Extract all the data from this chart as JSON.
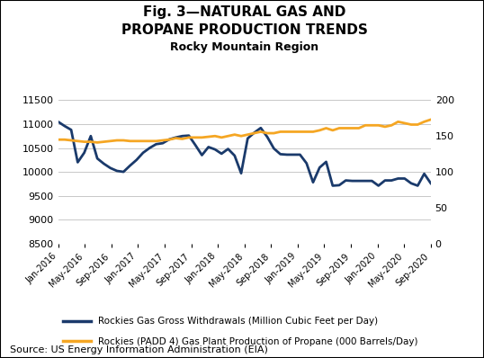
{
  "title_line1": "Fig. 3—NATURAL GAS AND",
  "title_line2": "PROPANE PRODUCTION TRENDS",
  "subtitle": "Rocky Mountain Region",
  "source": "Source: US Energy Information Administration (EIA)",
  "legend_blue": "Rockies Gas Gross Withdrawals (Million Cubic Feet per Day)",
  "legend_orange": "Rockies (PADD 4) Gas Plant Production of Propane (000 Barrels/Day)",
  "x_labels": [
    "Jan-2016",
    "May-2016",
    "Sep-2016",
    "Jan-2017",
    "May-2017",
    "Sep-2017",
    "Jan-2018",
    "May-2018",
    "Sep-2018",
    "Jan-2019",
    "May-2019",
    "Sep-2019",
    "Jan-2020",
    "May-2020",
    "Sep-2020"
  ],
  "blue_y": [
    11050,
    10960,
    10880,
    10200,
    10400,
    10750,
    10280,
    10170,
    10080,
    10020,
    10000,
    10130,
    10250,
    10400,
    10500,
    10580,
    10600,
    10680,
    10720,
    10750,
    10760,
    10560,
    10350,
    10520,
    10470,
    10380,
    10480,
    10340,
    9970,
    10700,
    10820,
    10920,
    10730,
    10490,
    10370,
    10360,
    10360,
    10360,
    10180,
    9780,
    10090,
    10210,
    9710,
    9720,
    9820,
    9810,
    9810,
    9810,
    9810,
    9710,
    9820,
    9820,
    9860,
    9860,
    9760,
    9710,
    9960,
    9760
  ],
  "orange_y": [
    145,
    145,
    144,
    143,
    142,
    142,
    141,
    142,
    143,
    144,
    144,
    143,
    143,
    143,
    143,
    143,
    144,
    145,
    147,
    146,
    148,
    148,
    148,
    149,
    150,
    148,
    150,
    152,
    150,
    152,
    154,
    156,
    154,
    154,
    156,
    156,
    156,
    156,
    156,
    156,
    158,
    161,
    158,
    161,
    161,
    161,
    161,
    165,
    165,
    165,
    163,
    165,
    170,
    168,
    166,
    166,
    170,
    173
  ],
  "left_ylim": [
    8500,
    11500
  ],
  "left_yticks": [
    8500,
    9000,
    9500,
    10000,
    10500,
    11000,
    11500
  ],
  "right_ylim": [
    0,
    200
  ],
  "right_yticks": [
    0,
    50,
    100,
    150,
    200
  ],
  "blue_color": "#1a3a6b",
  "orange_color": "#f5a623",
  "bg_color": "#ffffff",
  "grid_color": "#c8c8c8",
  "line_width": 2.0,
  "title_fontsize": 11,
  "subtitle_fontsize": 9,
  "tick_fontsize": 8,
  "xlabel_fontsize": 7,
  "legend_fontsize": 7.5,
  "source_fontsize": 8
}
